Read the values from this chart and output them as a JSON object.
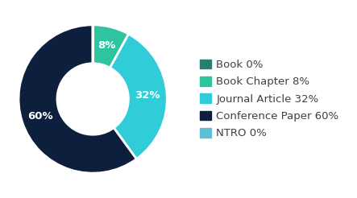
{
  "labels": [
    "Book",
    "Book Chapter",
    "Journal Article",
    "Conference Paper",
    "NTRO"
  ],
  "values": [
    0.001,
    8,
    32,
    60,
    0.001
  ],
  "colors": [
    "#2a7e6e",
    "#2ec4a0",
    "#30ccd8",
    "#0d1f3c",
    "#5dbfcf"
  ],
  "legend_labels": [
    "Book 0%",
    "Book Chapter 8%",
    "Journal Article 32%",
    "Conference Paper 60%",
    "NTRO 0%"
  ],
  "wedge_labels": [
    "",
    "8%",
    "32%",
    "60%",
    ""
  ],
  "background_color": "#ffffff",
  "donut_width": 0.52,
  "edgecolor": "white",
  "linewidth": 2.0,
  "legend_fontsize": 9.5,
  "label_fontsize": 9.5
}
